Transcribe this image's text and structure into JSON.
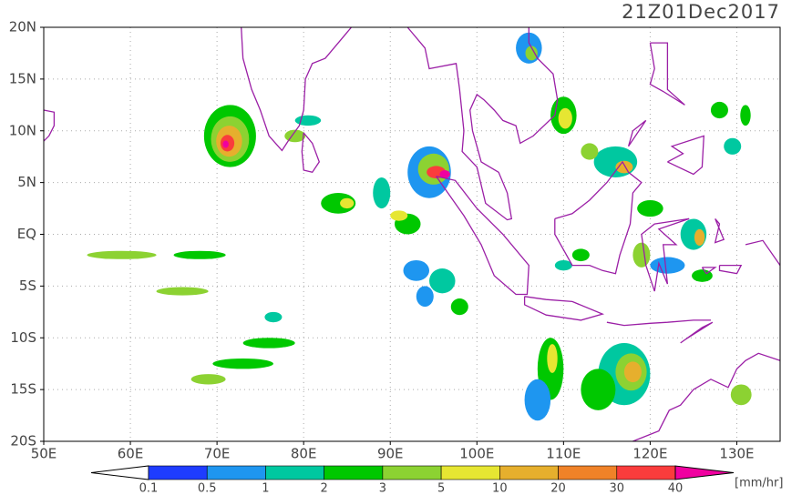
{
  "header": {
    "title": "21Z01Dec2017"
  },
  "axes": {
    "lat_labels": [
      "20N",
      "15N",
      "10N",
      "5N",
      "EQ",
      "5S",
      "10S",
      "15S",
      "20S"
    ],
    "lon_labels": [
      "50E",
      "60E",
      "70E",
      "80E",
      "90E",
      "100E",
      "110E",
      "120E",
      "130E"
    ]
  },
  "colorbar": {
    "labels": [
      "0.1",
      "0.5",
      "1",
      "2",
      "3",
      "5",
      "10",
      "20",
      "30",
      "40"
    ],
    "unit": "[mm/hr]"
  }
}
